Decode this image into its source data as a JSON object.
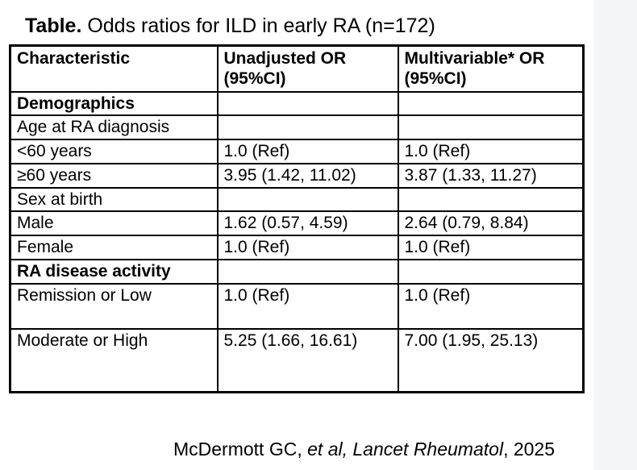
{
  "page": {
    "title_label": "Table.",
    "title_text": " Odds ratios for ILD in early RA (n=172)"
  },
  "table": {
    "columns": [
      "Characteristic",
      "Unadjusted OR (95%CI)",
      "Multivariable* OR (95%CI)"
    ],
    "rows": [
      {
        "label": "Demographics",
        "style": "section",
        "unadjusted": "",
        "multivariable": ""
      },
      {
        "label": "Age at RA diagnosis",
        "style": "plain",
        "unadjusted": "",
        "multivariable": ""
      },
      {
        "label": "<60 years",
        "style": "indent",
        "unadjusted": "1.0 (Ref)",
        "multivariable": "1.0 (Ref)"
      },
      {
        "label": "≥60 years",
        "style": "indent",
        "unadjusted": "3.95 (1.42, 11.02)",
        "multivariable": "3.87 (1.33, 11.27)"
      },
      {
        "label": "Sex at birth",
        "style": "plain",
        "unadjusted": "",
        "multivariable": ""
      },
      {
        "label": "Male",
        "style": "indent",
        "unadjusted": "1.62 (0.57, 4.59)",
        "multivariable": "2.64 (0.79, 8.84)"
      },
      {
        "label": "Female",
        "style": "indent",
        "unadjusted": "1.0 (Ref)",
        "multivariable": "1.0 (Ref)"
      },
      {
        "label": "RA disease activity",
        "style": "section",
        "unadjusted": "",
        "multivariable": ""
      },
      {
        "label": "Remission or Low",
        "style": "indent",
        "unadjusted": "1.0 (Ref)",
        "multivariable": "1.0 (Ref)"
      },
      {
        "label": "Moderate or High",
        "style": "indent",
        "unadjusted": "5.25 (1.66, 16.61)",
        "multivariable": "7.00 (1.95, 25.13)"
      }
    ]
  },
  "footer": {
    "pre": "McDermott GC, ",
    "italic": "et al, Lancet Rheumatol",
    "post": ", 2025"
  }
}
